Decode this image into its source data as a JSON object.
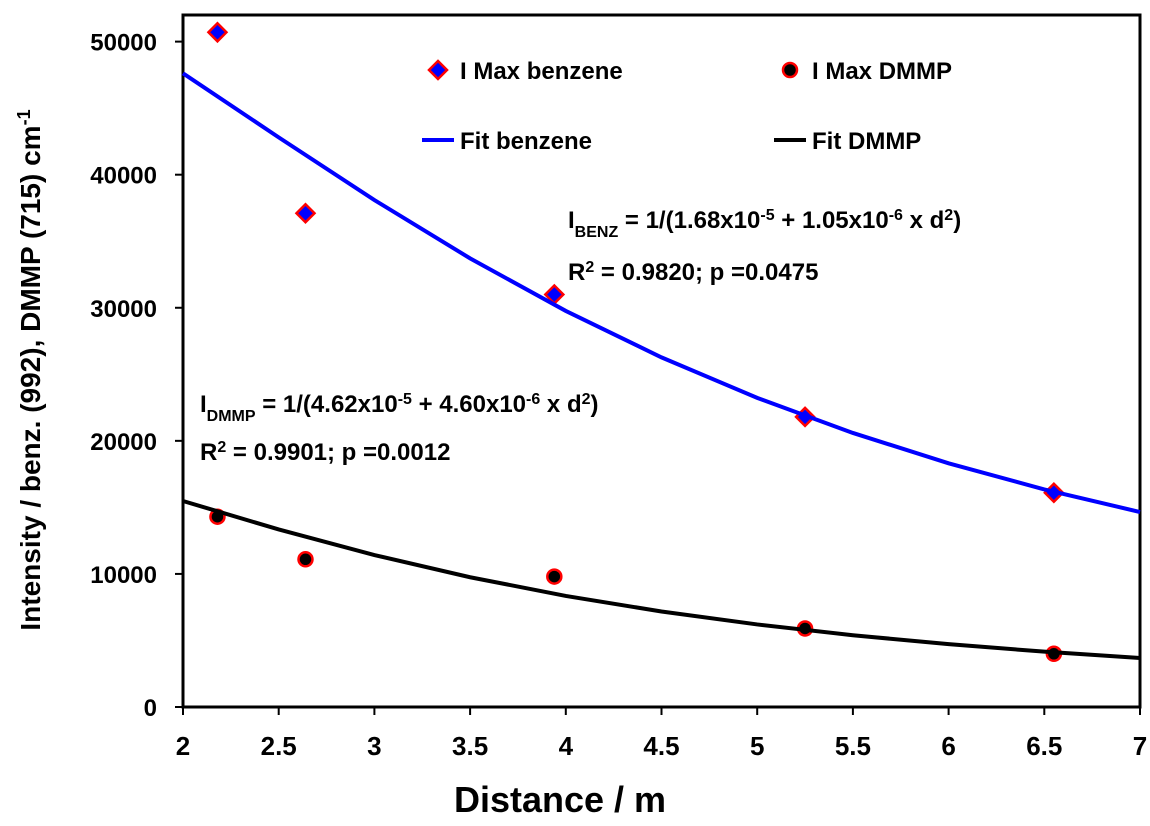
{
  "chart_data": {
    "type": "scatter",
    "xlabel": "Distance / m",
    "ylabel": {
      "runs": [
        {
          "text": "Intensity  / benz. (992), DMMP (715) cm"
        },
        {
          "sup": "-1"
        }
      ]
    },
    "xlim": [
      2,
      7
    ],
    "ylim": [
      0,
      52000
    ],
    "xticks": [
      2,
      2.5,
      3,
      3.5,
      4,
      4.5,
      5,
      5.5,
      6,
      6.5,
      7
    ],
    "yticks": [
      0,
      10000,
      20000,
      30000,
      40000,
      50000
    ],
    "series": [
      {
        "name": "I Max benzene",
        "type": "scatter",
        "marker": "diamond",
        "color": "#0000ff",
        "edgecolor": "#ff0000",
        "x": [
          2.18,
          2.64,
          3.94,
          5.25,
          6.55
        ],
        "values": [
          50700,
          37100,
          31000,
          21800,
          16100
        ]
      },
      {
        "name": "I Max DMMP",
        "type": "scatter",
        "marker": "circle",
        "color": "#000000",
        "edgecolor": "#ff0000",
        "x": [
          2.18,
          2.64,
          3.94,
          5.25,
          6.55
        ],
        "values": [
          14300,
          11100,
          9800,
          5900,
          4000
        ]
      },
      {
        "name": "Fit benzene",
        "type": "line",
        "color": "#0000ff",
        "x": [
          2,
          2.5,
          3,
          3.5,
          4,
          4.5,
          5,
          5.5,
          6,
          6.5,
          7
        ],
        "values": [
          47619,
          42804,
          38095,
          33713,
          29762,
          26273,
          23229,
          20592,
          18315,
          16350,
          14652
        ]
      },
      {
        "name": "Fit DMMP",
        "type": "line",
        "color": "#000000",
        "x": [
          2,
          2.5,
          3,
          3.5,
          4,
          4.5,
          5,
          5.5,
          6,
          6.5,
          7
        ],
        "values": [
          15480,
          13342,
          11416,
          9751,
          8347,
          7176,
          6203,
          5395,
          4721,
          4157,
          3682
        ]
      }
    ],
    "annotations": [
      {
        "runs": [
          {
            "text": "I"
          },
          {
            "sub": "BENZ"
          },
          {
            "text": " = 1/(1.68x10"
          },
          {
            "sup": "-5"
          },
          {
            "text": " + 1.05x10"
          },
          {
            "sup": "-6"
          },
          {
            "text": " x d"
          },
          {
            "sup": "2"
          },
          {
            "text": ")"
          }
        ]
      },
      {
        "runs": [
          {
            "text": "R"
          },
          {
            "sup": "2"
          },
          {
            "text": " = 0.9820; p =0.0475"
          }
        ]
      },
      {
        "runs": [
          {
            "text": "I"
          },
          {
            "sub": "DMMP"
          },
          {
            "text": " = 1/(4.62x10"
          },
          {
            "sup": "-5"
          },
          {
            "text": " + 4.60x10"
          },
          {
            "sup": "-6"
          },
          {
            "text": " x d"
          },
          {
            "sup": "2"
          },
          {
            "text": ")"
          }
        ]
      },
      {
        "runs": [
          {
            "text": "R"
          },
          {
            "sup": "2"
          },
          {
            "text": " = 0.9901; p =0.0012"
          }
        ]
      }
    ]
  }
}
